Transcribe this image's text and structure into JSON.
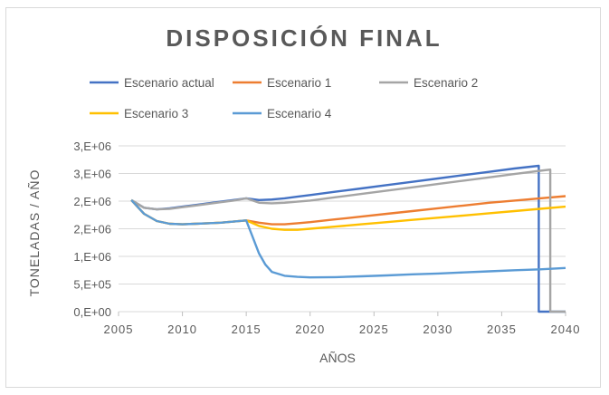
{
  "chart_data": {
    "type": "line",
    "title": "DISPOSICIÓN FINAL",
    "xlabel": "AÑOS",
    "ylabel": "TONELADAS / AÑO",
    "xlim": [
      2005,
      2040
    ],
    "ylim": [
      0,
      3000000
    ],
    "x_ticks": [
      {
        "value": 2005,
        "label": "2005"
      },
      {
        "value": 2010,
        "label": "2010"
      },
      {
        "value": 2015,
        "label": "2015"
      },
      {
        "value": 2020,
        "label": "2020"
      },
      {
        "value": 2025,
        "label": "2025"
      },
      {
        "value": 2030,
        "label": "2030"
      },
      {
        "value": 2035,
        "label": "2035"
      },
      {
        "value": 2040,
        "label": "2040"
      }
    ],
    "y_ticks": [
      {
        "value": 0,
        "label": "0,E+00"
      },
      {
        "value": 500000,
        "label": "5,E+05"
      },
      {
        "value": 1000000,
        "label": "1,E+06"
      },
      {
        "value": 1500000,
        "label": "2,E+06"
      },
      {
        "value": 2000000,
        "label": "2,E+06"
      },
      {
        "value": 2500000,
        "label": "3,E+06"
      },
      {
        "value": 3000000,
        "label": "3,E+06"
      }
    ],
    "grid": true,
    "legend_position": "top",
    "series": [
      {
        "name": "Escenario actual",
        "color": "#4472c4",
        "points": [
          [
            2006,
            2020000
          ],
          [
            2007,
            1880000
          ],
          [
            2008,
            1850000
          ],
          [
            2009,
            1870000
          ],
          [
            2010,
            1900000
          ],
          [
            2011,
            1930000
          ],
          [
            2012,
            1960000
          ],
          [
            2013,
            1990000
          ],
          [
            2014,
            2020000
          ],
          [
            2015,
            2050000
          ],
          [
            2016,
            2020000
          ],
          [
            2017,
            2030000
          ],
          [
            2018,
            2050000
          ],
          [
            2019,
            2080000
          ],
          [
            2020,
            2110000
          ],
          [
            2022,
            2170000
          ],
          [
            2024,
            2230000
          ],
          [
            2026,
            2290000
          ],
          [
            2028,
            2350000
          ],
          [
            2030,
            2410000
          ],
          [
            2032,
            2470000
          ],
          [
            2034,
            2530000
          ],
          [
            2036,
            2590000
          ],
          [
            2037.9,
            2640000
          ],
          [
            2037.9,
            0
          ],
          [
            2040,
            0
          ]
        ]
      },
      {
        "name": "Escenario 1",
        "color": "#ed7d31",
        "points": [
          [
            2006,
            2020000
          ],
          [
            2007,
            1770000
          ],
          [
            2008,
            1640000
          ],
          [
            2009,
            1590000
          ],
          [
            2010,
            1580000
          ],
          [
            2011,
            1590000
          ],
          [
            2012,
            1600000
          ],
          [
            2013,
            1610000
          ],
          [
            2014,
            1630000
          ],
          [
            2015,
            1650000
          ],
          [
            2016,
            1610000
          ],
          [
            2017,
            1580000
          ],
          [
            2018,
            1580000
          ],
          [
            2019,
            1600000
          ],
          [
            2020,
            1620000
          ],
          [
            2022,
            1670000
          ],
          [
            2024,
            1720000
          ],
          [
            2026,
            1770000
          ],
          [
            2028,
            1820000
          ],
          [
            2030,
            1870000
          ],
          [
            2032,
            1920000
          ],
          [
            2034,
            1970000
          ],
          [
            2036,
            2010000
          ],
          [
            2038,
            2050000
          ],
          [
            2040,
            2090000
          ]
        ]
      },
      {
        "name": "Escenario 2",
        "color": "#a5a5a5",
        "points": [
          [
            2006,
            2020000
          ],
          [
            2007,
            1880000
          ],
          [
            2008,
            1850000
          ],
          [
            2009,
            1860000
          ],
          [
            2010,
            1890000
          ],
          [
            2011,
            1920000
          ],
          [
            2012,
            1950000
          ],
          [
            2013,
            1980000
          ],
          [
            2014,
            2010000
          ],
          [
            2015,
            2050000
          ],
          [
            2016,
            1970000
          ],
          [
            2017,
            1960000
          ],
          [
            2018,
            1970000
          ],
          [
            2019,
            1990000
          ],
          [
            2020,
            2010000
          ],
          [
            2022,
            2070000
          ],
          [
            2024,
            2130000
          ],
          [
            2026,
            2190000
          ],
          [
            2028,
            2250000
          ],
          [
            2030,
            2310000
          ],
          [
            2032,
            2370000
          ],
          [
            2034,
            2430000
          ],
          [
            2036,
            2490000
          ],
          [
            2038,
            2550000
          ],
          [
            2038.8,
            2570000
          ],
          [
            2038.8,
            0
          ],
          [
            2040,
            0
          ]
        ]
      },
      {
        "name": "Escenario 3",
        "color": "#ffc000",
        "points": [
          [
            2006,
            2020000
          ],
          [
            2007,
            1770000
          ],
          [
            2008,
            1640000
          ],
          [
            2009,
            1590000
          ],
          [
            2010,
            1580000
          ],
          [
            2011,
            1590000
          ],
          [
            2012,
            1600000
          ],
          [
            2013,
            1610000
          ],
          [
            2014,
            1630000
          ],
          [
            2015,
            1650000
          ],
          [
            2016,
            1550000
          ],
          [
            2017,
            1500000
          ],
          [
            2018,
            1480000
          ],
          [
            2019,
            1480000
          ],
          [
            2020,
            1500000
          ],
          [
            2022,
            1540000
          ],
          [
            2024,
            1580000
          ],
          [
            2026,
            1620000
          ],
          [
            2028,
            1660000
          ],
          [
            2030,
            1700000
          ],
          [
            2032,
            1740000
          ],
          [
            2034,
            1780000
          ],
          [
            2036,
            1820000
          ],
          [
            2038,
            1860000
          ],
          [
            2040,
            1900000
          ]
        ]
      },
      {
        "name": "Escenario 4",
        "color": "#5b9bd5",
        "points": [
          [
            2006,
            2020000
          ],
          [
            2007,
            1770000
          ],
          [
            2008,
            1640000
          ],
          [
            2009,
            1590000
          ],
          [
            2010,
            1580000
          ],
          [
            2011,
            1590000
          ],
          [
            2012,
            1600000
          ],
          [
            2013,
            1610000
          ],
          [
            2014,
            1630000
          ],
          [
            2015,
            1650000
          ],
          [
            2015.5,
            1350000
          ],
          [
            2016,
            1050000
          ],
          [
            2016.5,
            850000
          ],
          [
            2017,
            720000
          ],
          [
            2018,
            650000
          ],
          [
            2019,
            630000
          ],
          [
            2020,
            620000
          ],
          [
            2022,
            625000
          ],
          [
            2024,
            640000
          ],
          [
            2026,
            655000
          ],
          [
            2028,
            675000
          ],
          [
            2030,
            690000
          ],
          [
            2032,
            710000
          ],
          [
            2034,
            730000
          ],
          [
            2036,
            750000
          ],
          [
            2038,
            765000
          ],
          [
            2040,
            790000
          ]
        ]
      }
    ]
  }
}
